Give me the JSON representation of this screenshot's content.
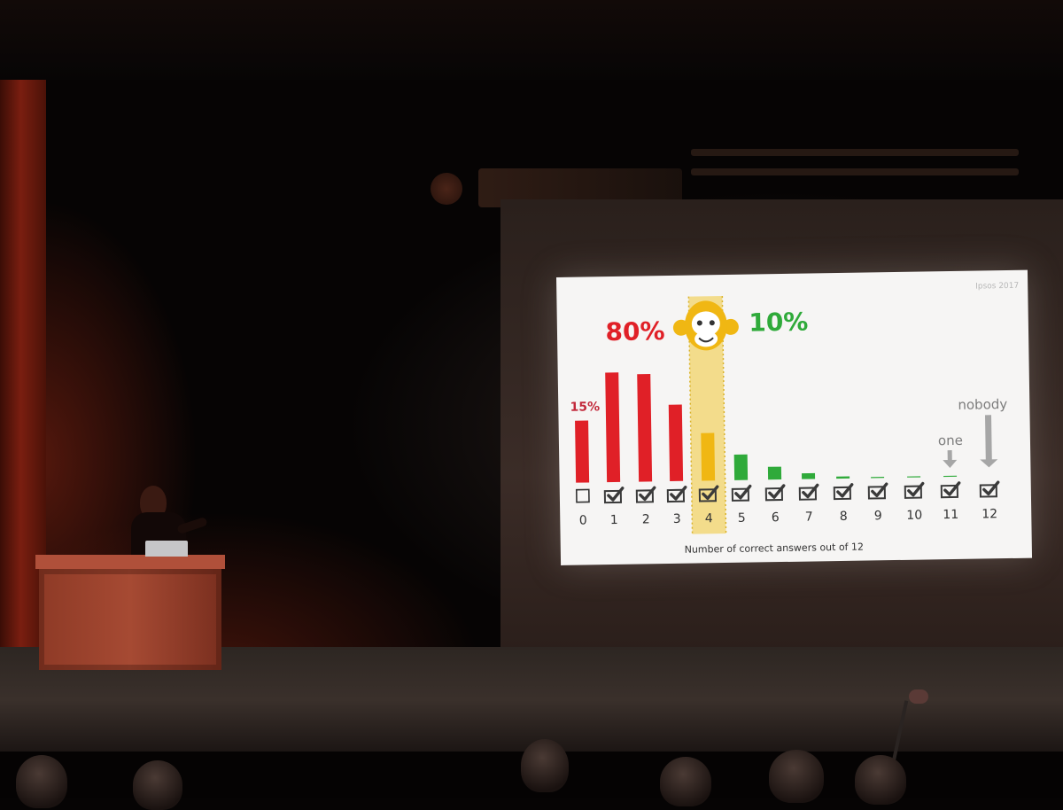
{
  "slide": {
    "source": "Ipsos 2017",
    "colors": {
      "wrong": "#e02027",
      "chance": "#f0b713",
      "right": "#2faa3a",
      "highlight": "#f3dc8b",
      "arrow": "#a6a6a6",
      "monkey_face": "#f0b713"
    },
    "icons": [
      "monkey-icon",
      "checkbox-empty-icon",
      "checkbox-checked-icon",
      "down-arrow-icon"
    ]
  },
  "chart_data": {
    "type": "bar",
    "categories": [
      "0",
      "1",
      "2",
      "3",
      "4",
      "5",
      "6",
      "7",
      "8",
      "9",
      "10",
      "11",
      "12"
    ],
    "values": [
      15,
      26.5,
      26,
      18.5,
      11.5,
      6.2,
      3.1,
      1.4,
      0.5,
      0.2,
      0.1,
      0.05,
      0
    ],
    "bar_colors": [
      "#e02027",
      "#e02027",
      "#e02027",
      "#e02027",
      "#f0b713",
      "#2faa3a",
      "#2faa3a",
      "#2faa3a",
      "#2faa3a",
      "#2faa3a",
      "#2faa3a",
      "#2faa3a",
      "#2faa3a"
    ],
    "highlight_category": "4",
    "xlabel": "Number of correct answers out of 12",
    "ylabel": "",
    "ylim": [
      0,
      30
    ],
    "grid": false,
    "annotations": {
      "wrong_share": "80%",
      "right_share": "10%",
      "first_bar": "15%",
      "eleven": "one",
      "twelve": "nobody"
    }
  }
}
